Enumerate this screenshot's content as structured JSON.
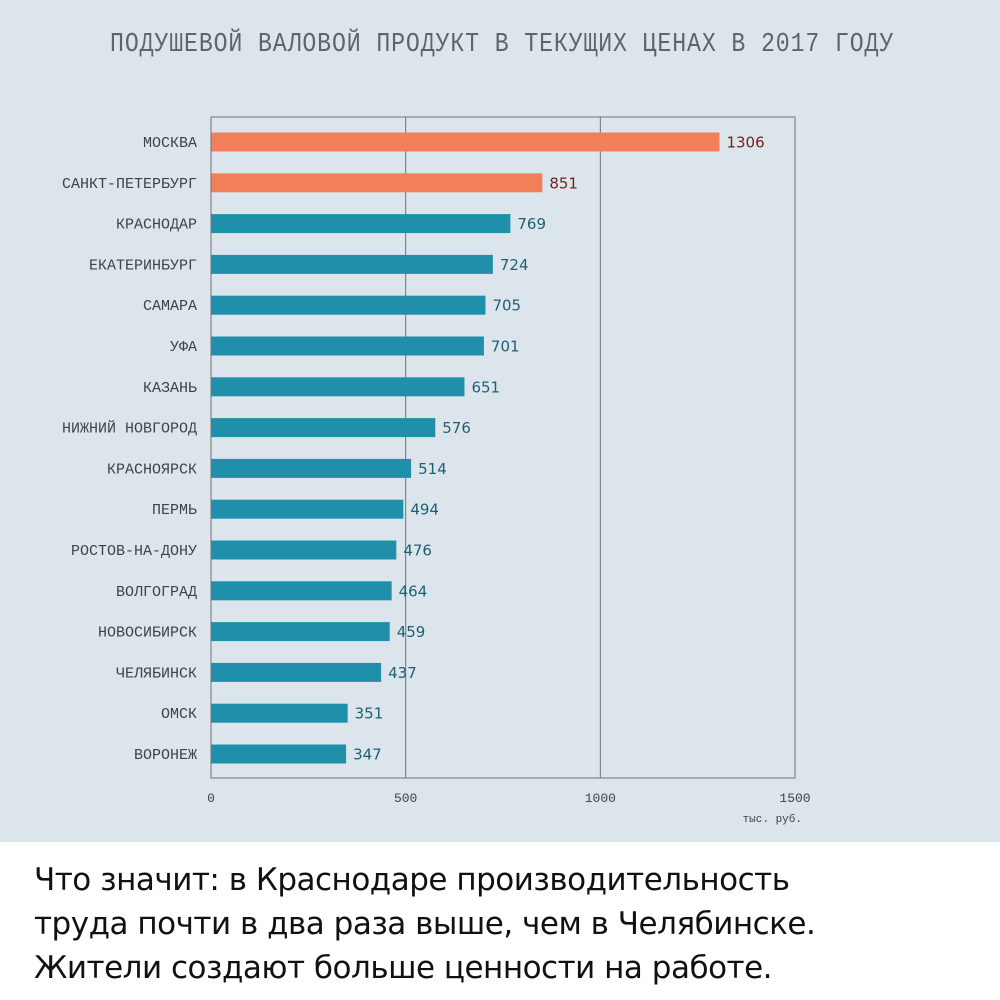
{
  "chart_data": {
    "type": "bar",
    "orientation": "horizontal",
    "title": "ПОДУШЕВОЙ ВАЛОВОЙ ПРОДУКТ В ТЕКУЩИХ ЦЕНАХ В 2017 ГОДУ",
    "xlabel": "тыс. руб.",
    "ylabel": "",
    "categories": [
      "МОСКВА",
      "САНКТ-ПЕТЕРБУРГ",
      "КРАСНОДАР",
      "ЕКАТЕРИНБУРГ",
      "САМАРА",
      "УФА",
      "КАЗАНЬ",
      "НИЖНИЙ НОВГОРОД",
      "КРАСНОЯРСК",
      "ПЕРМЬ",
      "РОСТОВ-НА-ДОНУ",
      "ВОЛГОГРАД",
      "НОВОСИБИРСК",
      "ЧЕЛЯБИНСК",
      "ОМСК",
      "ВОРОНЕЖ"
    ],
    "values": [
      1306,
      851,
      769,
      724,
      705,
      701,
      651,
      576,
      514,
      494,
      476,
      464,
      459,
      437,
      351,
      347
    ],
    "value_labels": [
      "1306",
      "851",
      "769",
      "724",
      "705",
      "701",
      "651",
      "576",
      "514",
      "494",
      "476",
      "464",
      "459",
      "437",
      "351",
      "347"
    ],
    "highlighted": [
      true,
      true,
      false,
      false,
      false,
      false,
      false,
      false,
      false,
      false,
      false,
      false,
      false,
      false,
      false,
      false
    ],
    "xlim": [
      0,
      1500
    ],
    "xticks": [
      0,
      500,
      1000,
      1500
    ],
    "xtick_labels": [
      "0",
      "500",
      "1000",
      "1500"
    ],
    "grid": "vertical",
    "colors": {
      "highlight_bar": "#f07f5a",
      "bar": "#1f8faa",
      "highlight_label": "#7a1c1c",
      "label": "#1f5f73",
      "gridline": "#6f7478",
      "background": "#dce5ec"
    }
  },
  "caption": {
    "lines": [
      "Что значит: в Краснодаре производительность",
      "труда почти в два раза выше, чем в Челябинске.",
      "Жители создают больше ценности на работе."
    ]
  }
}
